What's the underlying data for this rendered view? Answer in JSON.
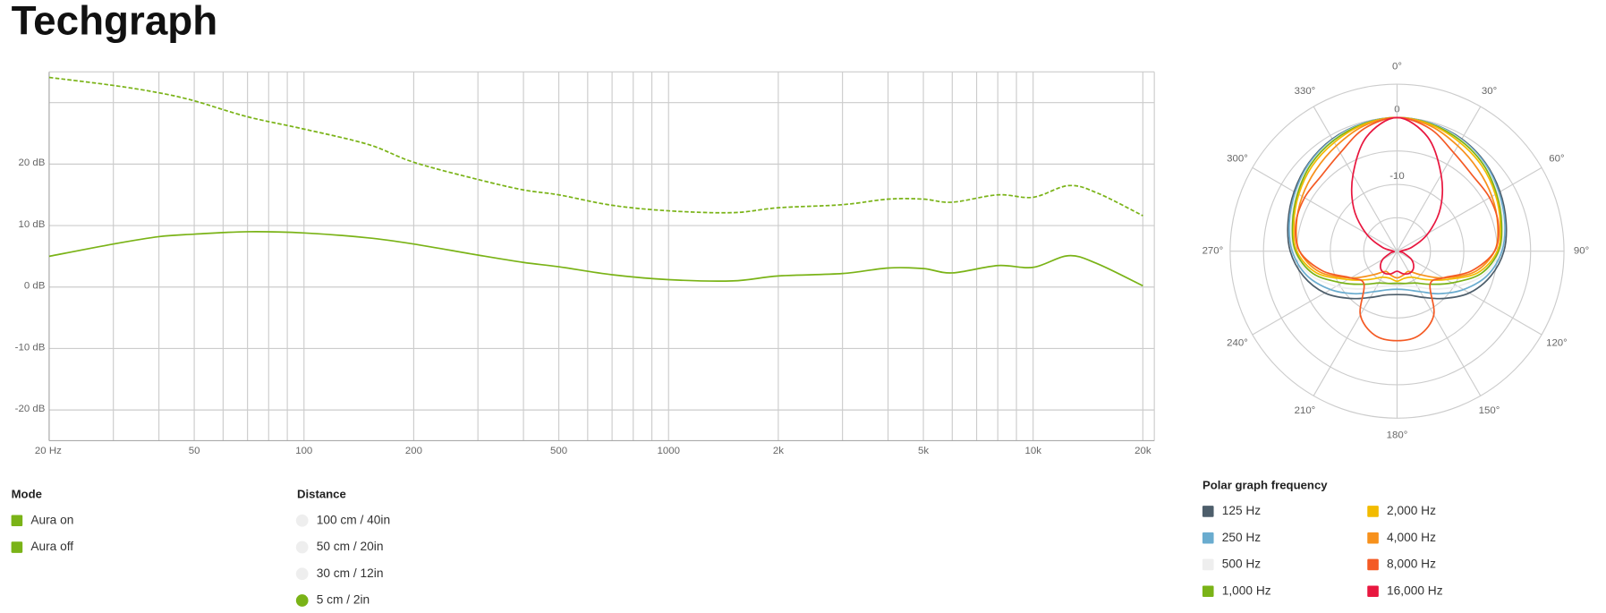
{
  "page": {
    "title": "Techgraph"
  },
  "chart_data": [
    {
      "type": "line",
      "x_scale": "log",
      "xlim": [
        20,
        21500
      ],
      "xticks": [
        {
          "value": 20,
          "label": "20 Hz"
        },
        50,
        100,
        200,
        500,
        1000,
        {
          "value": 2000,
          "label": "2k"
        },
        {
          "value": 5000,
          "label": "5k"
        },
        {
          "value": 10000,
          "label": "10k"
        },
        {
          "value": 20000,
          "label": "20k"
        }
      ],
      "x_minor_ticks": [
        30,
        40,
        60,
        70,
        80,
        90,
        300,
        400,
        600,
        700,
        800,
        900,
        3000,
        4000,
        6000,
        7000,
        8000,
        9000
      ],
      "ylim": [
        -25,
        35
      ],
      "yticks": [
        {
          "value": 20,
          "label": "20 dB"
        },
        {
          "value": 10,
          "label": "10 dB"
        },
        {
          "value": 0,
          "label": "0 dB"
        },
        {
          "value": -10,
          "label": "-10 dB"
        },
        {
          "value": -20,
          "label": "-20 dB"
        }
      ],
      "y_minor_ticks": [
        30
      ],
      "grid": true,
      "x": [
        20,
        30,
        40,
        50,
        70,
        100,
        150,
        200,
        300,
        400,
        500,
        700,
        1000,
        1500,
        2000,
        3000,
        4000,
        5000,
        6000,
        8000,
        10000,
        12500,
        15000,
        20000
      ],
      "series": [
        {
          "name": "Aura on",
          "color": "#7ab317",
          "dashed": false,
          "values": [
            5,
            7,
            8.2,
            8.6,
            9,
            8.8,
            8,
            7,
            5.2,
            4,
            3.3,
            2,
            1.2,
            1,
            1.8,
            2.2,
            3.1,
            3,
            2.3,
            3.5,
            3.2,
            5.1,
            3.8,
            0.2
          ]
        },
        {
          "name": "Aura off",
          "color": "#7ab317",
          "dashed": true,
          "values": [
            34.1,
            32.8,
            31.6,
            30.3,
            27.7,
            25.7,
            23.2,
            20.3,
            17.5,
            15.8,
            15,
            13.3,
            12.4,
            12.1,
            12.9,
            13.4,
            14.3,
            14.3,
            13.8,
            15,
            14.6,
            16.5,
            15.3,
            11.6
          ]
        }
      ]
    },
    {
      "type": "polar",
      "rlim": [
        -20,
        5
      ],
      "rticks": [
        0,
        -10
      ],
      "r_minor_ticks": [
        -15,
        -5
      ],
      "thetaticks": [
        {
          "value": 0,
          "label": "0°"
        },
        {
          "value": 30,
          "label": "30°"
        },
        {
          "value": 60,
          "label": "60°"
        },
        {
          "value": 90,
          "label": "90°"
        },
        {
          "value": 120,
          "label": "120°"
        },
        {
          "value": 150,
          "label": "150°"
        },
        {
          "value": 180,
          "label": "180°"
        },
        {
          "value": 210,
          "label": "210°"
        },
        {
          "value": 240,
          "label": "240°"
        },
        {
          "value": 270,
          "label": "270°"
        },
        {
          "value": 300,
          "label": "300°"
        },
        {
          "value": 330,
          "label": "330°"
        }
      ],
      "theta": [
        0,
        15,
        30,
        45,
        60,
        75,
        90,
        105,
        120,
        135,
        150,
        165,
        180,
        195,
        210,
        225,
        240,
        255,
        270,
        285,
        300,
        315,
        330,
        345
      ],
      "series": [
        {
          "name": "125 Hz",
          "color": "#4d5e6b",
          "values": [
            0,
            -0.2,
            -0.6,
            -1.3,
            -2.2,
            -3.1,
            -4,
            -5.5,
            -7.5,
            -10,
            -12,
            -13.2,
            -13.5,
            -13.2,
            -12,
            -10,
            -7.5,
            -5.5,
            -4,
            -3.1,
            -2.2,
            -1.3,
            -0.6,
            -0.2
          ]
        },
        {
          "name": "250 Hz",
          "color": "#6aaccf",
          "values": [
            0,
            -0.2,
            -0.7,
            -1.4,
            -2.4,
            -3.3,
            -4.3,
            -6,
            -8.5,
            -11,
            -13,
            -14,
            -14.3,
            -14,
            -13,
            -11,
            -8.5,
            -6,
            -4.3,
            -3.3,
            -2.4,
            -1.4,
            -0.7,
            -0.2
          ]
        },
        {
          "name": "500 Hz",
          "color": "#eeeeee",
          "values": [
            0,
            -0.3,
            -0.8,
            -1.6,
            -2.6,
            -3.6,
            -4.6,
            -6.5,
            -9.5,
            -12,
            -13.8,
            -14.6,
            -14.8,
            -14.6,
            -13.8,
            -12,
            -9.5,
            -6.5,
            -4.6,
            -3.6,
            -2.6,
            -1.6,
            -0.8,
            -0.3
          ]
        },
        {
          "name": "1,000 Hz",
          "color": "#7ab317",
          "values": [
            0,
            -0.3,
            -0.9,
            -1.7,
            -2.8,
            -3.8,
            -4.8,
            -7,
            -10.5,
            -13,
            -14.5,
            -15,
            -15.2,
            -15,
            -14.5,
            -13,
            -10.5,
            -7,
            -4.8,
            -3.8,
            -2.8,
            -1.7,
            -0.9,
            -0.3
          ]
        },
        {
          "name": "2,000 Hz",
          "color": "#f2bb00",
          "values": [
            0,
            -0.4,
            -1.2,
            -2,
            -3,
            -4,
            -5,
            -7.5,
            -11.5,
            -14,
            -15.5,
            -15.8,
            -15.5,
            -15.8,
            -15.5,
            -14,
            -11.5,
            -7.5,
            -5,
            -4,
            -3,
            -2,
            -1.2,
            -0.4
          ]
        },
        {
          "name": "4,000 Hz",
          "color": "#f7911c",
          "values": [
            0,
            -0.6,
            -1.8,
            -2.8,
            -3.6,
            -4.4,
            -5.4,
            -8,
            -12,
            -15,
            -16.5,
            -16.3,
            -16,
            -16.3,
            -16.5,
            -15,
            -12,
            -8,
            -5.4,
            -4.4,
            -3.6,
            -2.8,
            -1.8,
            -0.6
          ]
        },
        {
          "name": "8,000 Hz",
          "color": "#f45a24",
          "values": [
            0,
            -1,
            -3,
            -4,
            -4,
            -4.3,
            -5.4,
            -8.5,
            -12,
            -13,
            -9,
            -7,
            -6.6,
            -7,
            -9,
            -13,
            -12,
            -8.5,
            -5.4,
            -4.3,
            -4,
            -4,
            -3,
            -1
          ]
        },
        {
          "name": "16,000 Hz",
          "color": "#e8173f",
          "values": [
            0,
            -2.3,
            -6.8,
            -10.8,
            -14.6,
            -17.7,
            -19.5,
            -19,
            -17.5,
            -16.5,
            -16.2,
            -16.5,
            -17,
            -16.5,
            -16.2,
            -16.5,
            -17.5,
            -19,
            -19.5,
            -17.7,
            -14.6,
            -10.8,
            -6.8,
            -2.3
          ]
        }
      ]
    }
  ],
  "controls": {
    "mode": {
      "label": "Mode"
    },
    "distance": {
      "label": "Distance",
      "options": [
        "100 cm / 40in",
        "50 cm / 20in",
        "30 cm / 12in",
        "5 cm / 2in"
      ],
      "selected": 3,
      "selected_color": "#7ab317",
      "color": "#eeeeee"
    },
    "polar_frequency": {
      "label": "Polar graph frequency"
    }
  }
}
